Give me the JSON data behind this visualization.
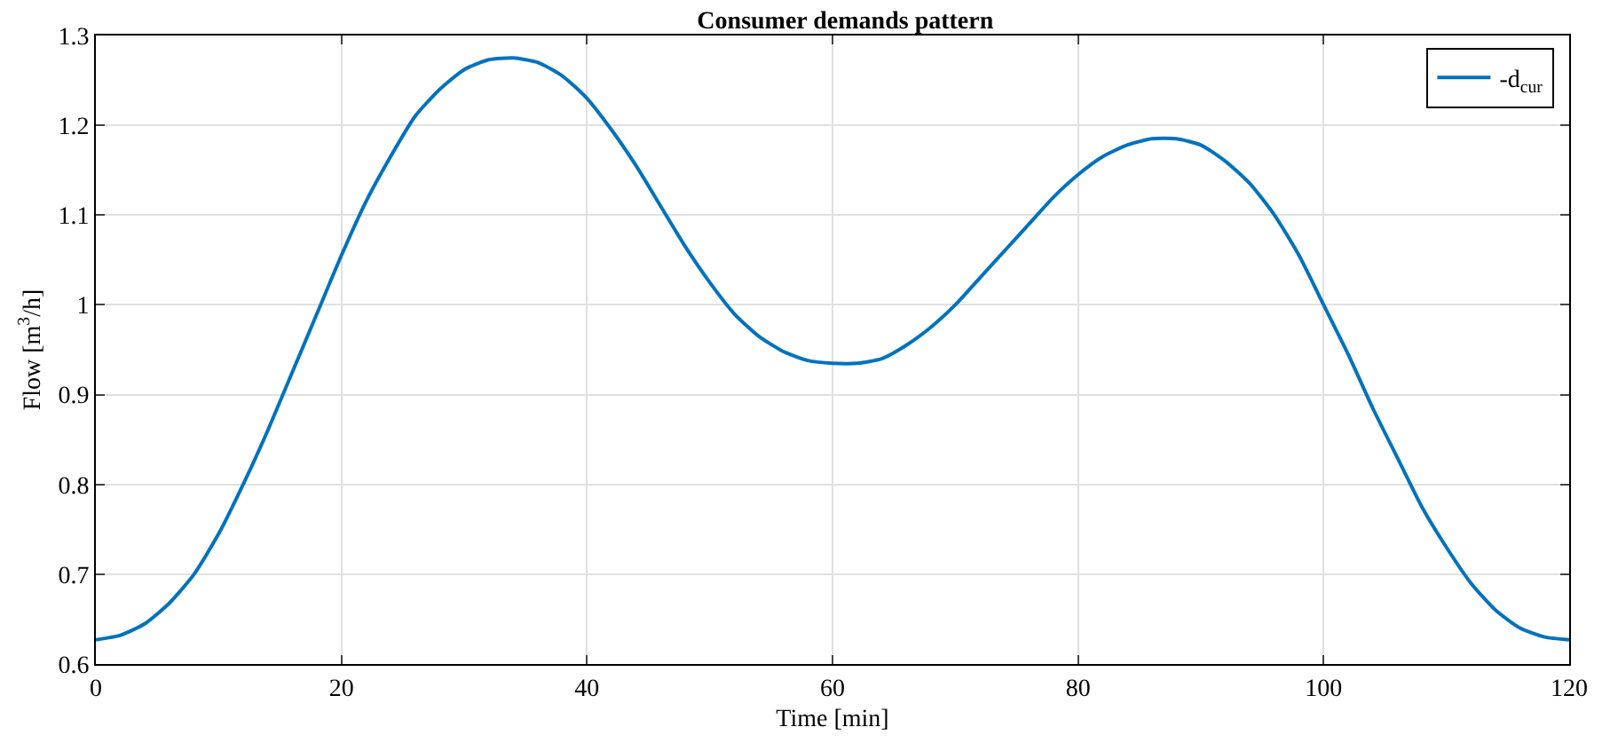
{
  "chart_data": {
    "type": "line",
    "title": "Consumer demands pattern",
    "xlabel": "Time [min]",
    "ylabel": "Flow [m$^{3}$/h]",
    "x": [
      0,
      2,
      4,
      6,
      8,
      10,
      12,
      14,
      16,
      18,
      20,
      22,
      24,
      26,
      28,
      30,
      32,
      34,
      36,
      38,
      40,
      42,
      44,
      46,
      48,
      50,
      52,
      54,
      56,
      58,
      60,
      62,
      64,
      66,
      68,
      70,
      72,
      74,
      76,
      78,
      80,
      82,
      84,
      86,
      88,
      90,
      92,
      94,
      96,
      98,
      100,
      102,
      104,
      106,
      108,
      110,
      112,
      114,
      116,
      118,
      120
    ],
    "series": [
      {
        "name": "-d$_{cur}$",
        "color": "#0072bd",
        "values": [
          0.627,
          0.632,
          0.645,
          0.668,
          0.7,
          0.745,
          0.8,
          0.86,
          0.925,
          0.99,
          1.055,
          1.115,
          1.165,
          1.21,
          1.24,
          1.262,
          1.273,
          1.275,
          1.27,
          1.255,
          1.23,
          1.195,
          1.155,
          1.11,
          1.065,
          1.025,
          0.99,
          0.965,
          0.948,
          0.938,
          0.935,
          0.935,
          0.94,
          0.955,
          0.975,
          1.0,
          1.03,
          1.06,
          1.09,
          1.12,
          1.145,
          1.165,
          1.178,
          1.185,
          1.185,
          1.178,
          1.16,
          1.135,
          1.1,
          1.055,
          1.0,
          0.945,
          0.885,
          0.83,
          0.775,
          0.73,
          0.69,
          0.66,
          0.64,
          0.63,
          0.627
        ]
      }
    ],
    "xlim": [
      0,
      120
    ],
    "xticks": [
      0,
      20,
      40,
      60,
      80,
      100,
      120
    ],
    "ylim": [
      0.6,
      1.3
    ],
    "yticks": [
      0.6,
      0.7,
      0.8,
      0.9,
      1,
      1.1,
      1.2,
      1.3
    ],
    "grid": true,
    "legend": "top right",
    "marker": "none",
    "line_style": "solid"
  }
}
